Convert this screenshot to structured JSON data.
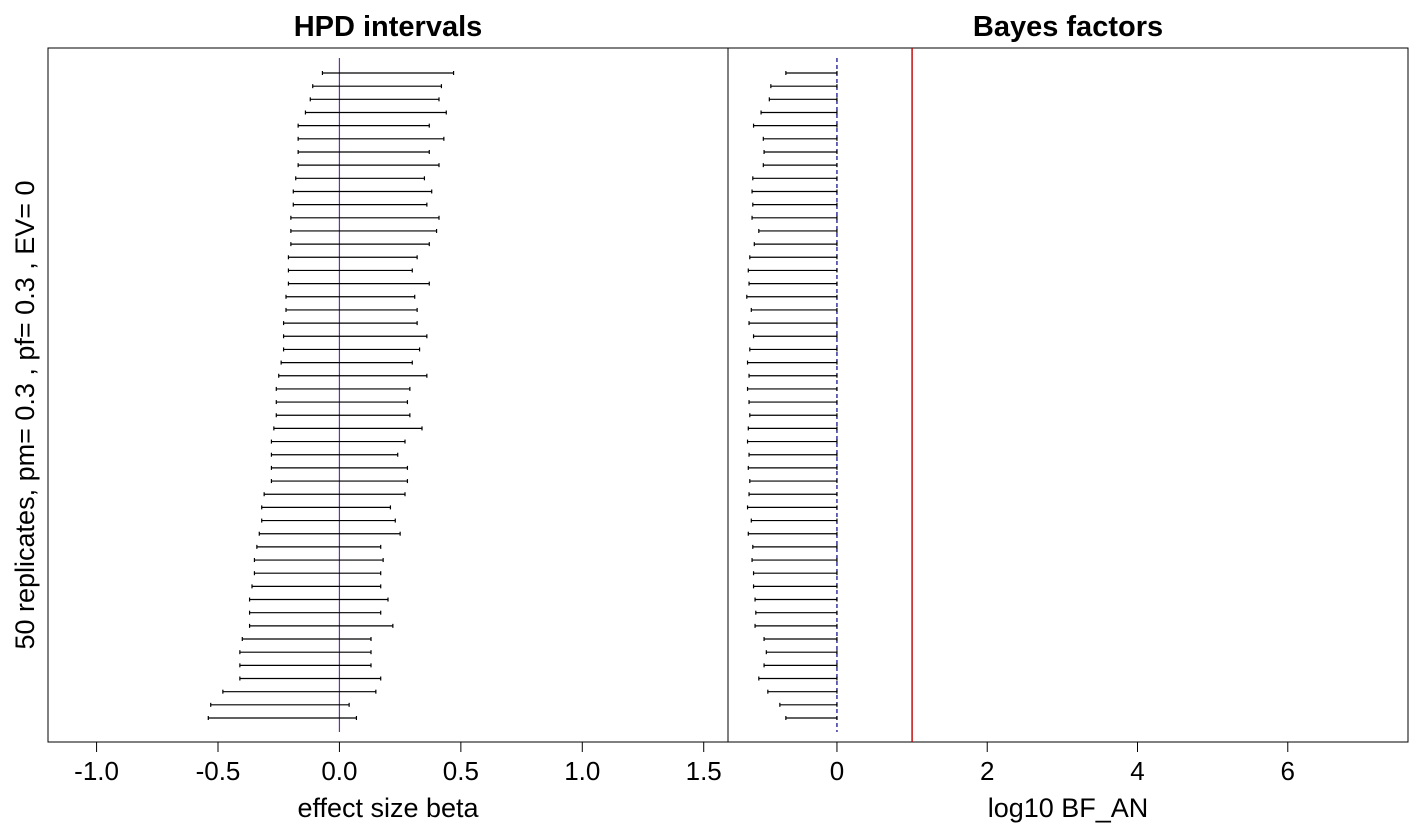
{
  "ylabel": "50 replicates, pm= 0.3 , pf= 0.3 , EV= 0",
  "chart_data": [
    {
      "type": "interval",
      "title": "HPD intervals",
      "xlabel": "effect size beta",
      "xlim": [
        -1.2,
        1.6
      ],
      "xticks": [
        -1.0,
        -0.5,
        0.0,
        0.5,
        1.0,
        1.5
      ],
      "xtick_labels": [
        "-1.0",
        "-0.5",
        "0.0",
        "0.5",
        "1.0",
        "1.5"
      ],
      "reference_line": {
        "x": 0.0,
        "color": "#7030A0"
      },
      "intervals": [
        [
          -0.07,
          0.47
        ],
        [
          -0.11,
          0.42
        ],
        [
          -0.12,
          0.41
        ],
        [
          -0.14,
          0.44
        ],
        [
          -0.17,
          0.37
        ],
        [
          -0.17,
          0.43
        ],
        [
          -0.17,
          0.37
        ],
        [
          -0.17,
          0.41
        ],
        [
          -0.18,
          0.35
        ],
        [
          -0.19,
          0.38
        ],
        [
          -0.19,
          0.36
        ],
        [
          -0.2,
          0.41
        ],
        [
          -0.2,
          0.4
        ],
        [
          -0.2,
          0.37
        ],
        [
          -0.21,
          0.32
        ],
        [
          -0.21,
          0.3
        ],
        [
          -0.21,
          0.37
        ],
        [
          -0.22,
          0.31
        ],
        [
          -0.22,
          0.32
        ],
        [
          -0.23,
          0.32
        ],
        [
          -0.23,
          0.36
        ],
        [
          -0.23,
          0.33
        ],
        [
          -0.24,
          0.3
        ],
        [
          -0.25,
          0.36
        ],
        [
          -0.26,
          0.29
        ],
        [
          -0.26,
          0.28
        ],
        [
          -0.26,
          0.29
        ],
        [
          -0.27,
          0.34
        ],
        [
          -0.28,
          0.27
        ],
        [
          -0.28,
          0.24
        ],
        [
          -0.28,
          0.28
        ],
        [
          -0.28,
          0.28
        ],
        [
          -0.31,
          0.27
        ],
        [
          -0.32,
          0.21
        ],
        [
          -0.32,
          0.23
        ],
        [
          -0.33,
          0.25
        ],
        [
          -0.34,
          0.17
        ],
        [
          -0.35,
          0.18
        ],
        [
          -0.35,
          0.17
        ],
        [
          -0.36,
          0.17
        ],
        [
          -0.37,
          0.2
        ],
        [
          -0.37,
          0.17
        ],
        [
          -0.37,
          0.22
        ],
        [
          -0.4,
          0.13
        ],
        [
          -0.41,
          0.13
        ],
        [
          -0.41,
          0.13
        ],
        [
          -0.41,
          0.17
        ],
        [
          -0.48,
          0.15
        ],
        [
          -0.53,
          0.04
        ],
        [
          -0.54,
          0.07
        ]
      ]
    },
    {
      "type": "interval",
      "title": "Bayes factors",
      "xlabel": "log10 BF_AN",
      "xlim": [
        -1.45,
        7.6
      ],
      "xticks": [
        0,
        2,
        4,
        6
      ],
      "xtick_labels": [
        "0",
        "2",
        "4",
        "6"
      ],
      "reference_line": {
        "x": 0,
        "color": "#00008B",
        "dashed": true
      },
      "threshold_line": {
        "x": 1,
        "color": "#C00000"
      },
      "intervals": [
        [
          -0.68,
          0
        ],
        [
          -0.88,
          0
        ],
        [
          -0.9,
          0
        ],
        [
          -1.01,
          0
        ],
        [
          -1.11,
          0
        ],
        [
          -0.98,
          0
        ],
        [
          -0.97,
          0
        ],
        [
          -0.98,
          0
        ],
        [
          -1.12,
          0
        ],
        [
          -1.13,
          0
        ],
        [
          -1.12,
          0
        ],
        [
          -1.13,
          0
        ],
        [
          -1.04,
          0
        ],
        [
          -1.1,
          0
        ],
        [
          -1.16,
          0
        ],
        [
          -1.18,
          0
        ],
        [
          -1.17,
          0
        ],
        [
          -1.2,
          0
        ],
        [
          -1.14,
          0
        ],
        [
          -1.17,
          0
        ],
        [
          -1.11,
          0
        ],
        [
          -1.16,
          0
        ],
        [
          -1.19,
          0
        ],
        [
          -1.17,
          0
        ],
        [
          -1.19,
          0
        ],
        [
          -1.17,
          0
        ],
        [
          -1.16,
          0
        ],
        [
          -1.18,
          0
        ],
        [
          -1.19,
          0
        ],
        [
          -1.17,
          0
        ],
        [
          -1.18,
          0
        ],
        [
          -1.16,
          0
        ],
        [
          -1.17,
          0
        ],
        [
          -1.19,
          0
        ],
        [
          -1.14,
          0
        ],
        [
          -1.18,
          0
        ],
        [
          -1.12,
          0
        ],
        [
          -1.13,
          0
        ],
        [
          -1.11,
          0
        ],
        [
          -1.11,
          0
        ],
        [
          -1.09,
          0
        ],
        [
          -1.08,
          0
        ],
        [
          -1.09,
          0
        ],
        [
          -0.97,
          0
        ],
        [
          -0.94,
          0
        ],
        [
          -0.97,
          0
        ],
        [
          -1.04,
          0
        ],
        [
          -0.92,
          0
        ],
        [
          -0.76,
          0
        ],
        [
          -0.68,
          0
        ]
      ]
    }
  ]
}
